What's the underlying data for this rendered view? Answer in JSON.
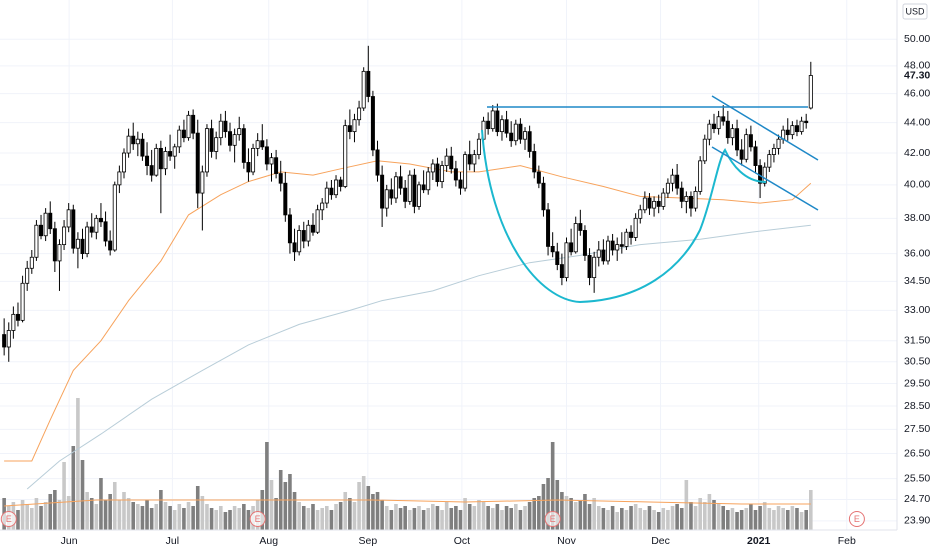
{
  "chart_data": {
    "type": "candlestick",
    "currency": "USD",
    "last_price": {
      "value": 47.3,
      "label": "47.30"
    },
    "log_scale": true,
    "grid": true,
    "ylim": [
      23.57,
      53.1
    ],
    "yticks": [
      {
        "value": 23.9,
        "label": "23.90"
      },
      {
        "value": 24.7,
        "label": "24.70"
      },
      {
        "value": 25.5,
        "label": "25.50"
      },
      {
        "value": 26.5,
        "label": "26.50"
      },
      {
        "value": 27.5,
        "label": "27.50"
      },
      {
        "value": 28.5,
        "label": "28.50"
      },
      {
        "value": 29.5,
        "label": "29.50"
      },
      {
        "value": 30.5,
        "label": "30.50"
      },
      {
        "value": 31.5,
        "label": "31.50"
      },
      {
        "value": 33,
        "label": "33.00"
      },
      {
        "value": 34.5,
        "label": "34.50"
      },
      {
        "value": 36,
        "label": "36.00"
      },
      {
        "value": 38,
        "label": "38.00"
      },
      {
        "value": 40,
        "label": "40.00"
      },
      {
        "value": 42,
        "label": "42.00"
      },
      {
        "value": 44,
        "label": "44.00"
      },
      {
        "value": 46,
        "label": "46.00"
      },
      {
        "value": 48,
        "label": "48.00"
      },
      {
        "value": 50,
        "label": "50.00"
      }
    ],
    "xlim": [
      -0.9,
      193.7
    ],
    "xticks": [
      {
        "value": 14.1,
        "label": "Jun"
      },
      {
        "value": 36.5,
        "label": "Jul"
      },
      {
        "value": 57.4,
        "label": "Aug"
      },
      {
        "value": 78.9,
        "label": "Sep"
      },
      {
        "value": 99.3,
        "label": "Oct"
      },
      {
        "value": 122,
        "label": "Nov"
      },
      {
        "value": 142.4,
        "label": "Dec"
      },
      {
        "value": 163.7,
        "label": "2021"
      },
      {
        "value": 182.8,
        "label": "Feb"
      }
    ],
    "up_color": "#ffffff",
    "down_color": "#000000",
    "up_volume_color": "#c8c8c8",
    "down_volume_color": "#7f7f7f",
    "candles": [
      [
        31.8,
        32.6,
        30.8,
        31.2
      ],
      [
        31.2,
        32.4,
        30.5,
        32.0
      ],
      [
        32.0,
        33.2,
        31.6,
        32.8
      ],
      [
        32.8,
        33.4,
        32.2,
        32.5
      ],
      [
        32.5,
        34.8,
        32.4,
        34.4
      ],
      [
        34.4,
        35.6,
        34.0,
        35.2
      ],
      [
        35.2,
        36.2,
        34.9,
        35.8
      ],
      [
        35.8,
        37.9,
        35.6,
        37.6
      ],
      [
        37.6,
        38.2,
        36.8,
        37.0
      ],
      [
        37.0,
        38.6,
        36.7,
        38.3
      ],
      [
        38.3,
        39.0,
        37.1,
        37.4
      ],
      [
        37.4,
        37.8,
        35.0,
        35.6
      ],
      [
        35.6,
        36.8,
        34.0,
        36.5
      ],
      [
        36.5,
        37.9,
        36.2,
        37.5
      ],
      [
        37.5,
        38.9,
        37.2,
        38.5
      ],
      [
        38.5,
        38.8,
        36.0,
        36.3
      ],
      [
        36.3,
        37.2,
        35.2,
        36.8
      ],
      [
        36.8,
        37.4,
        35.7,
        36.0
      ],
      [
        36.0,
        37.8,
        35.8,
        37.5
      ],
      [
        37.5,
        38.3,
        36.9,
        37.2
      ],
      [
        37.2,
        38.2,
        36.8,
        38.0
      ],
      [
        38.0,
        38.9,
        37.5,
        37.8
      ],
      [
        37.8,
        38.4,
        36.4,
        36.7
      ],
      [
        36.7,
        37.3,
        35.9,
        36.2
      ],
      [
        36.2,
        40.2,
        36.1,
        40.0
      ],
      [
        40.0,
        41.2,
        39.5,
        40.8
      ],
      [
        40.8,
        42.3,
        40.4,
        42.0
      ],
      [
        42.0,
        43.6,
        41.7,
        43.1
      ],
      [
        43.1,
        44.0,
        42.2,
        42.6
      ],
      [
        42.6,
        43.4,
        41.8,
        42.9
      ],
      [
        42.9,
        43.3,
        41.5,
        41.8
      ],
      [
        41.8,
        42.7,
        40.6,
        41.2
      ],
      [
        41.2,
        42.2,
        40.2,
        40.6
      ],
      [
        40.6,
        42.6,
        40.5,
        42.3
      ],
      [
        42.3,
        42.8,
        38.3,
        41.0
      ],
      [
        41.0,
        42.4,
        40.6,
        42.1
      ],
      [
        42.1,
        43.2,
        41.5,
        41.8
      ],
      [
        41.8,
        42.6,
        41.0,
        42.4
      ],
      [
        42.4,
        43.8,
        42.0,
        43.5
      ],
      [
        43.5,
        44.2,
        42.7,
        43.0
      ],
      [
        43.0,
        44.8,
        42.8,
        44.5
      ],
      [
        44.5,
        44.9,
        42.9,
        43.3
      ],
      [
        43.3,
        44.2,
        38.6,
        39.5
      ],
      [
        39.5,
        41.2,
        37.3,
        40.8
      ],
      [
        40.8,
        43.9,
        40.5,
        43.6
      ],
      [
        43.6,
        44.2,
        41.7,
        42.1
      ],
      [
        42.1,
        43.4,
        41.6,
        43.0
      ],
      [
        43.0,
        44.6,
        42.5,
        44.1
      ],
      [
        44.1,
        44.8,
        43.0,
        43.4
      ],
      [
        43.4,
        44.0,
        42.1,
        42.5
      ],
      [
        42.5,
        43.6,
        41.4,
        43.2
      ],
      [
        43.2,
        44.4,
        42.8,
        43.6
      ],
      [
        43.6,
        43.9,
        41.0,
        41.4
      ],
      [
        41.4,
        42.3,
        40.2,
        40.8
      ],
      [
        40.8,
        42.6,
        40.6,
        42.3
      ],
      [
        42.3,
        43.3,
        41.8,
        42.8
      ],
      [
        42.8,
        43.9,
        42.2,
        42.4
      ],
      [
        42.4,
        42.9,
        40.9,
        41.3
      ],
      [
        41.3,
        42.0,
        40.2,
        41.7
      ],
      [
        41.7,
        42.2,
        40.4,
        40.7
      ],
      [
        40.7,
        41.5,
        39.6,
        40.1
      ],
      [
        40.1,
        40.8,
        37.8,
        38.2
      ],
      [
        38.2,
        38.6,
        36.0,
        36.6
      ],
      [
        36.6,
        37.4,
        35.6,
        36.1
      ],
      [
        36.1,
        37.6,
        35.9,
        37.3
      ],
      [
        37.3,
        37.8,
        36.3,
        36.7
      ],
      [
        36.7,
        37.9,
        36.4,
        37.6
      ],
      [
        37.6,
        38.3,
        37.0,
        37.2
      ],
      [
        37.2,
        38.8,
        37.1,
        38.5
      ],
      [
        38.5,
        39.2,
        37.9,
        38.9
      ],
      [
        38.9,
        40.2,
        38.6,
        39.8
      ],
      [
        39.8,
        40.3,
        39.1,
        39.4
      ],
      [
        39.4,
        40.6,
        39.2,
        40.3
      ],
      [
        40.3,
        40.5,
        39.6,
        39.9
      ],
      [
        39.9,
        44.2,
        39.8,
        43.8
      ],
      [
        43.8,
        44.9,
        42.9,
        43.4
      ],
      [
        43.4,
        44.6,
        42.7,
        44.2
      ],
      [
        44.2,
        45.5,
        43.8,
        45.0
      ],
      [
        45.0,
        47.9,
        44.8,
        47.6
      ],
      [
        47.6,
        49.5,
        45.4,
        45.8
      ],
      [
        45.8,
        46.2,
        41.8,
        42.2
      ],
      [
        42.2,
        42.8,
        40.2,
        40.6
      ],
      [
        40.6,
        41.2,
        37.5,
        38.6
      ],
      [
        38.6,
        40.0,
        38.1,
        39.7
      ],
      [
        39.7,
        40.4,
        38.8,
        39.2
      ],
      [
        39.2,
        40.8,
        38.9,
        40.5
      ],
      [
        40.5,
        41.2,
        39.4,
        39.8
      ],
      [
        39.8,
        40.3,
        38.6,
        39.0
      ],
      [
        39.0,
        40.9,
        38.8,
        40.6
      ],
      [
        40.6,
        41.0,
        38.3,
        38.7
      ],
      [
        38.7,
        40.2,
        38.5,
        40.0
      ],
      [
        40.0,
        40.9,
        39.5,
        39.7
      ],
      [
        39.7,
        41.1,
        39.4,
        40.8
      ],
      [
        40.8,
        41.6,
        40.3,
        41.3
      ],
      [
        41.3,
        41.7,
        39.9,
        40.2
      ],
      [
        40.2,
        41.5,
        39.8,
        41.2
      ],
      [
        41.2,
        42.3,
        40.8,
        41.8
      ],
      [
        41.8,
        42.4,
        40.7,
        41.0
      ],
      [
        41.0,
        41.5,
        39.9,
        40.3
      ],
      [
        40.3,
        40.8,
        39.4,
        39.8
      ],
      [
        39.8,
        42.1,
        39.6,
        41.9
      ],
      [
        41.9,
        42.8,
        40.9,
        41.3
      ],
      [
        41.3,
        42.2,
        40.8,
        41.9
      ],
      [
        41.9,
        43.3,
        41.6,
        42.9
      ],
      [
        42.9,
        44.4,
        42.6,
        44.1
      ],
      [
        44.1,
        44.7,
        43.2,
        43.6
      ],
      [
        43.6,
        45.2,
        43.4,
        44.8
      ],
      [
        44.8,
        45.3,
        43.1,
        43.4
      ],
      [
        43.4,
        44.5,
        42.8,
        44.2
      ],
      [
        44.2,
        44.8,
        43.0,
        43.3
      ],
      [
        43.3,
        44.1,
        42.4,
        42.8
      ],
      [
        42.8,
        44.2,
        42.5,
        43.9
      ],
      [
        43.9,
        44.3,
        42.6,
        42.9
      ],
      [
        42.9,
        43.7,
        42.2,
        43.4
      ],
      [
        43.4,
        43.8,
        41.7,
        42.1
      ],
      [
        42.1,
        42.6,
        40.4,
        40.8
      ],
      [
        40.8,
        41.2,
        39.8,
        40.1
      ],
      [
        40.1,
        40.5,
        38.1,
        38.5
      ],
      [
        38.5,
        38.9,
        35.9,
        36.4
      ],
      [
        36.4,
        37.2,
        35.8,
        36.1
      ],
      [
        36.1,
        36.6,
        35.1,
        35.4
      ],
      [
        35.4,
        36.0,
        34.3,
        34.7
      ],
      [
        34.7,
        36.9,
        34.5,
        36.6
      ],
      [
        36.6,
        37.4,
        35.9,
        36.1
      ],
      [
        36.1,
        38.1,
        36.0,
        37.7
      ],
      [
        37.7,
        38.5,
        37.0,
        37.3
      ],
      [
        37.3,
        37.6,
        35.6,
        35.9
      ],
      [
        35.9,
        36.3,
        34.3,
        34.7
      ],
      [
        34.7,
        36.1,
        33.9,
        35.8
      ],
      [
        35.8,
        36.7,
        35.3,
        36.2
      ],
      [
        36.2,
        36.8,
        35.4,
        35.6
      ],
      [
        35.6,
        37.0,
        35.4,
        36.7
      ],
      [
        36.7,
        37.1,
        35.9,
        36.2
      ],
      [
        36.2,
        36.9,
        35.6,
        36.5
      ],
      [
        36.5,
        37.2,
        36.0,
        36.4
      ],
      [
        36.4,
        37.4,
        36.2,
        37.2
      ],
      [
        37.2,
        37.6,
        36.5,
        36.9
      ],
      [
        36.9,
        38.3,
        36.7,
        38.0
      ],
      [
        38.0,
        38.8,
        37.7,
        38.5
      ],
      [
        38.5,
        39.6,
        38.3,
        39.2
      ],
      [
        39.2,
        39.5,
        38.2,
        38.6
      ],
      [
        38.6,
        39.3,
        38.1,
        39.0
      ],
      [
        39.0,
        39.4,
        38.3,
        38.7
      ],
      [
        38.7,
        39.8,
        38.5,
        39.5
      ],
      [
        39.5,
        40.4,
        39.2,
        40.1
      ],
      [
        40.1,
        41.0,
        39.6,
        40.6
      ],
      [
        40.6,
        41.3,
        39.4,
        39.8
      ],
      [
        39.8,
        40.2,
        38.6,
        39.0
      ],
      [
        39.0,
        39.6,
        38.3,
        39.3
      ],
      [
        39.3,
        39.6,
        38.1,
        38.6
      ],
      [
        38.6,
        39.9,
        38.4,
        39.6
      ],
      [
        39.6,
        41.8,
        39.4,
        41.5
      ],
      [
        41.5,
        43.2,
        41.3,
        42.9
      ],
      [
        42.9,
        44.2,
        42.5,
        43.9
      ],
      [
        43.9,
        44.6,
        43.3,
        43.6
      ],
      [
        43.6,
        44.8,
        43.2,
        44.4
      ],
      [
        44.4,
        45.2,
        43.8,
        44.1
      ],
      [
        44.1,
        44.8,
        42.6,
        43.0
      ],
      [
        43.0,
        43.9,
        42.5,
        43.6
      ],
      [
        43.6,
        44.2,
        41.8,
        42.2
      ],
      [
        42.2,
        42.9,
        41.2,
        41.6
      ],
      [
        41.6,
        43.6,
        41.4,
        43.2
      ],
      [
        43.2,
        43.8,
        42.1,
        42.4
      ],
      [
        42.4,
        42.8,
        40.7,
        41.2
      ],
      [
        41.2,
        41.6,
        39.2,
        40.1
      ],
      [
        40.1,
        41.4,
        39.9,
        41.1
      ],
      [
        41.1,
        42.2,
        40.8,
        41.9
      ],
      [
        41.9,
        42.6,
        41.4,
        42.3
      ],
      [
        42.3,
        43.2,
        41.9,
        42.9
      ],
      [
        42.9,
        43.8,
        42.6,
        43.5
      ],
      [
        43.5,
        44.3,
        42.8,
        43.2
      ],
      [
        43.2,
        44.1,
        42.9,
        43.8
      ],
      [
        43.8,
        44.2,
        43.1,
        43.4
      ],
      [
        43.4,
        44.4,
        43.2,
        44.1
      ],
      [
        44.1,
        44.6,
        43.6,
        44.0
      ],
      [
        45.0,
        48.3,
        44.9,
        47.3
      ]
    ],
    "vlim": [
      0,
      7
    ],
    "volume": [
      1.6,
      1.2,
      1.4,
      1.0,
      1.5,
      1.3,
      1.1,
      1.6,
      1.2,
      1.4,
      1.8,
      2.0,
      1.5,
      3.4,
      1.7,
      4.2,
      6.6,
      3.5,
      1.9,
      1.6,
      1.3,
      2.6,
      1.5,
      1.8,
      2.4,
      1.5,
      1.9,
      1.6,
      1.4,
      1.3,
      1.2,
      1.5,
      1.1,
      1.3,
      2.0,
      1.4,
      1.2,
      1.0,
      1.3,
      1.1,
      1.4,
      1.2,
      2.2,
      1.7,
      1.3,
      1.1,
      1.0,
      1.2,
      0.9,
      1.0,
      1.2,
      1.1,
      1.3,
      1.0,
      1.2,
      1.5,
      2.0,
      4.4,
      2.5,
      1.6,
      3.0,
      2.4,
      2.8,
      1.9,
      1.4,
      1.2,
      1.1,
      1.3,
      1.0,
      1.1,
      1.2,
      1.0,
      1.3,
      1.4,
      1.9,
      1.6,
      1.4,
      2.4,
      2.7,
      2.2,
      1.8,
      1.9,
      1.5,
      1.2,
      1.0,
      1.3,
      1.1,
      1.2,
      1.0,
      1.1,
      1.2,
      1.0,
      1.1,
      1.3,
      1.2,
      1.0,
      1.4,
      1.1,
      1.2,
      1.0,
      1.6,
      1.3,
      1.2,
      1.5,
      1.4,
      1.2,
      1.1,
      1.3,
      1.0,
      1.2,
      1.1,
      1.3,
      1.0,
      1.2,
      1.4,
      1.6,
      1.7,
      2.3,
      2.6,
      4.4,
      2.5,
      1.9,
      1.7,
      1.6,
      1.4,
      1.5,
      1.8,
      1.3,
      1.6,
      1.2,
      1.1,
      1.0,
      1.2,
      0.9,
      1.1,
      1.0,
      1.2,
      1.3,
      1.1,
      1.0,
      1.2,
      1.0,
      0.9,
      1.1,
      1.0,
      1.2,
      1.3,
      1.1,
      2.5,
      1.4,
      1.2,
      1.6,
      1.4,
      1.8,
      1.5,
      1.3,
      1.2,
      1.0,
      1.1,
      0.9,
      1.0,
      1.1,
      1.3,
      1.0,
      1.2,
      1.4,
      1.1,
      1.0,
      1.2,
      1.1,
      1.0,
      1.2,
      1.1,
      0.9,
      1.0,
      2.0
    ],
    "overlays": [
      {
        "color": "#f7a35c",
        "x": [
          0,
          6,
          10,
          15,
          21,
          27,
          34,
          40,
          47,
          53,
          60,
          67,
          73,
          81,
          88,
          97,
          103,
          112,
          121,
          130,
          138,
          147,
          156,
          164,
          171,
          175
        ],
        "values": [
          26.2,
          26.2,
          27.9,
          30.1,
          31.5,
          33.5,
          35.6,
          38.2,
          39.4,
          40.2,
          40.8,
          40.6,
          41.0,
          41.5,
          41.3,
          40.8,
          40.8,
          41.2,
          40.5,
          39.9,
          39.3,
          39.2,
          39.1,
          38.9,
          39.1,
          40.1
        ]
      },
      {
        "color": "#b8cdd8",
        "x": [
          5,
          12,
          21,
          32,
          43,
          53,
          64,
          75,
          82,
          93,
          103,
          114,
          125,
          138,
          151,
          162,
          175
        ],
        "values": [
          25.1,
          26.2,
          27.3,
          28.8,
          30.1,
          31.3,
          32.3,
          33.0,
          33.5,
          34.0,
          34.8,
          35.5,
          35.9,
          36.5,
          36.8,
          37.2,
          37.6
        ]
      },
      {
        "color": "#f7a35c",
        "axis": "volume",
        "x": [
          0,
          20,
          40,
          60,
          80,
          100,
          120,
          140,
          160,
          175
        ],
        "values": [
          1.2,
          1.5,
          1.5,
          1.5,
          1.5,
          1.4,
          1.5,
          1.4,
          1.3,
          1.3
        ]
      }
    ],
    "events": [
      {
        "x": 1,
        "label": "E"
      },
      {
        "x": 55,
        "label": "E"
      },
      {
        "x": 119,
        "label": "E"
      },
      {
        "x": 185,
        "label": "E"
      }
    ]
  }
}
